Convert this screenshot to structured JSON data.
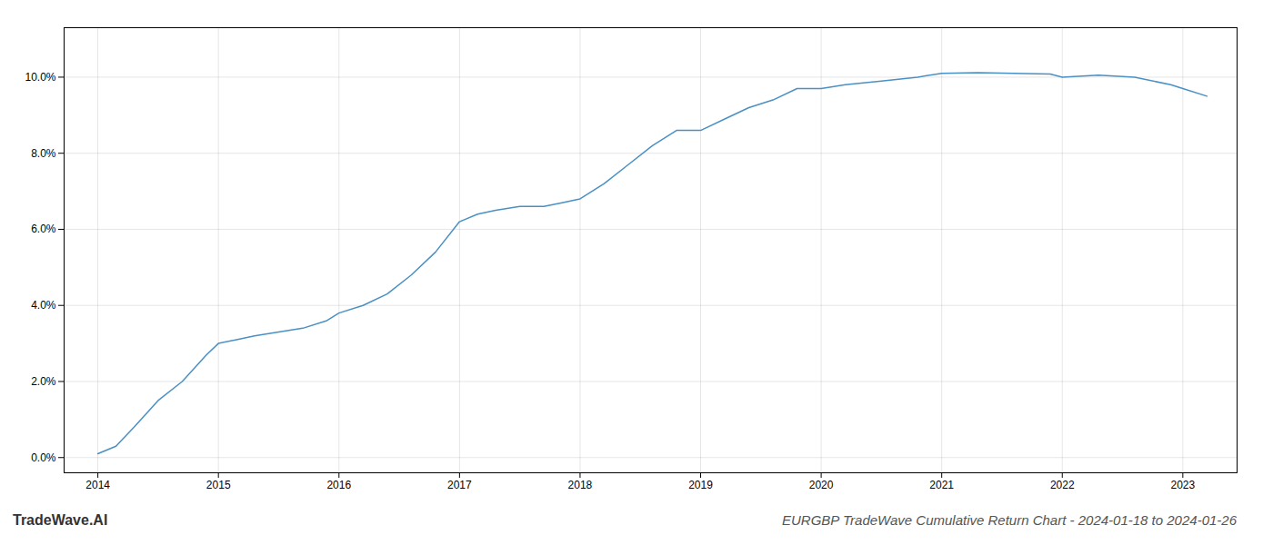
{
  "chart_data": {
    "type": "line",
    "title": "EURGBP TradeWave Cumulative Return Chart - 2024-01-18 to 2024-01-26",
    "annotations": [
      "TradeWave.AI"
    ],
    "x": [
      2014.0,
      2014.15,
      2014.3,
      2014.5,
      2014.7,
      2014.9,
      2015.0,
      2015.15,
      2015.3,
      2015.5,
      2015.7,
      2015.9,
      2016.0,
      2016.2,
      2016.4,
      2016.6,
      2016.8,
      2017.0,
      2017.15,
      2017.3,
      2017.5,
      2017.7,
      2017.85,
      2018.0,
      2018.2,
      2018.4,
      2018.6,
      2018.8,
      2019.0,
      2019.2,
      2019.4,
      2019.6,
      2019.8,
      2020.0,
      2020.2,
      2020.5,
      2020.8,
      2021.0,
      2021.3,
      2021.6,
      2021.9,
      2022.0,
      2022.3,
      2022.6,
      2022.9,
      2023.0,
      2023.2
    ],
    "values": [
      0.001,
      0.003,
      0.008,
      0.015,
      0.02,
      0.027,
      0.03,
      0.031,
      0.032,
      0.033,
      0.034,
      0.036,
      0.038,
      0.04,
      0.043,
      0.048,
      0.054,
      0.062,
      0.064,
      0.065,
      0.066,
      0.066,
      0.067,
      0.068,
      0.072,
      0.077,
      0.082,
      0.086,
      0.086,
      0.089,
      0.092,
      0.094,
      0.097,
      0.097,
      0.098,
      0.099,
      0.1,
      0.101,
      0.1012,
      0.101,
      0.1008,
      0.1,
      0.1005,
      0.1,
      0.098,
      0.097,
      0.095
    ],
    "color": "#4a90c4",
    "xlim": [
      2013.72,
      2023.45
    ],
    "ylim": [
      -0.004,
      0.113
    ],
    "xticks": [
      2014,
      2015,
      2016,
      2017,
      2018,
      2019,
      2020,
      2021,
      2022,
      2023
    ],
    "yticks": [
      {
        "value": 0.0,
        "label": "0.0%"
      },
      {
        "value": 0.02,
        "label": "2.0%"
      },
      {
        "value": 0.04,
        "label": "4.0%"
      },
      {
        "value": 0.06,
        "label": "6.0%"
      },
      {
        "value": 0.08,
        "label": "8.0%"
      },
      {
        "value": 0.1,
        "label": "10.0%"
      }
    ],
    "grid": true
  }
}
